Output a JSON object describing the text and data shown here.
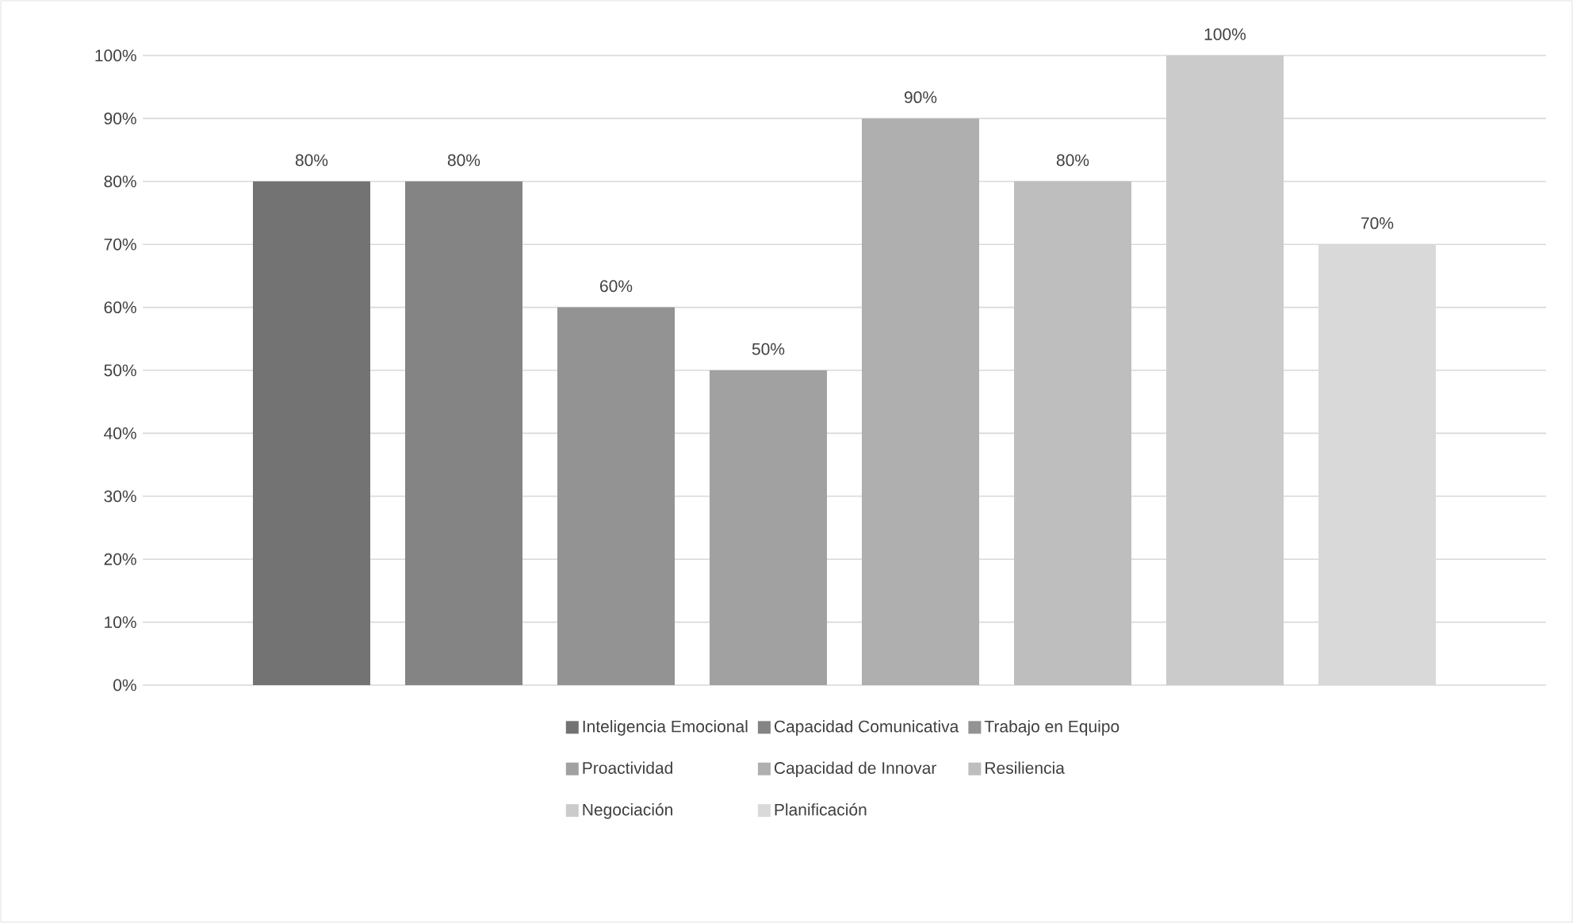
{
  "chart_data": {
    "type": "bar",
    "categories": [
      null
    ],
    "series": [
      {
        "name": "Inteligencia Emocional",
        "color": "#737373",
        "values": [
          80
        ],
        "value_labels": [
          "80%"
        ]
      },
      {
        "name": "Capacidad Comunicativa",
        "color": "#848484",
        "values": [
          80
        ],
        "value_labels": [
          "80%"
        ]
      },
      {
        "name": "Trabajo en Equipo",
        "color": "#939393",
        "values": [
          60
        ],
        "value_labels": [
          "60%"
        ]
      },
      {
        "name": "Proactividad",
        "color": "#a1a1a1",
        "values": [
          50
        ],
        "value_labels": [
          "50%"
        ]
      },
      {
        "name": "Capacidad de Innovar",
        "color": "#afafaf",
        "values": [
          90
        ],
        "value_labels": [
          "90%"
        ]
      },
      {
        "name": "Resiliencia",
        "color": "#bebebe",
        "values": [
          80
        ],
        "value_labels": [
          "80%"
        ]
      },
      {
        "name": "Negociación",
        "color": "#cbcbcb",
        "values": [
          100
        ],
        "value_labels": [
          "100%"
        ]
      },
      {
        "name": "Planificación",
        "color": "#d9d9d9",
        "values": [
          70
        ],
        "value_labels": [
          "70%"
        ]
      }
    ],
    "ylim": [
      0,
      100
    ],
    "yticks": [
      {
        "value": 0,
        "label": "0%"
      },
      {
        "value": 10,
        "label": "10%"
      },
      {
        "value": 20,
        "label": "20%"
      },
      {
        "value": 30,
        "label": "30%"
      },
      {
        "value": 40,
        "label": "40%"
      },
      {
        "value": 50,
        "label": "50%"
      },
      {
        "value": 60,
        "label": "60%"
      },
      {
        "value": 70,
        "label": "70%"
      },
      {
        "value": 80,
        "label": "80%"
      },
      {
        "value": 90,
        "label": "90%"
      },
      {
        "value": 100,
        "label": "100%"
      }
    ],
    "grid": "y",
    "legend": "bottom",
    "tick_labels": "y"
  }
}
